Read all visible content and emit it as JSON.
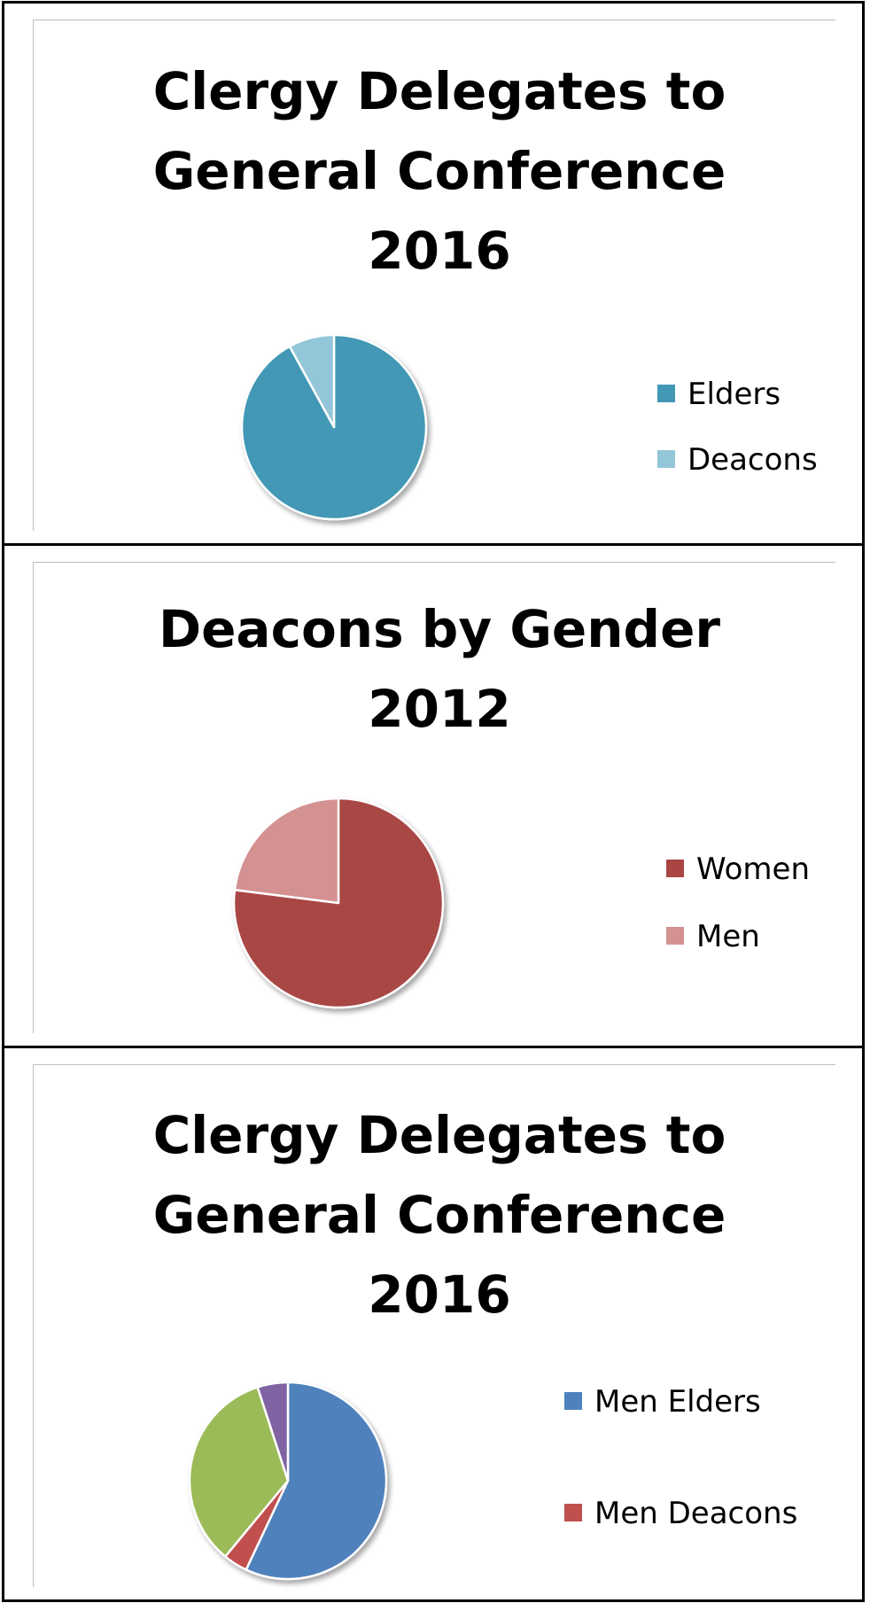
{
  "chart_data": [
    {
      "type": "pie",
      "title": "Clergy Delegates to\nGeneral Conference\n2016",
      "categories": [
        "Elders",
        "Deacons"
      ],
      "values": [
        92,
        8
      ],
      "colors": [
        "#4298b5",
        "#93c6d9"
      ],
      "legend": "right"
    },
    {
      "type": "pie",
      "title": "Deacons by Gender\n2012",
      "categories": [
        "Women",
        "Men"
      ],
      "values": [
        77,
        23
      ],
      "colors": [
        "#a94644",
        "#d49191"
      ],
      "legend": "right"
    },
    {
      "type": "pie",
      "title": "Clergy Delegates to\nGeneral Conference\n2016",
      "categories": [
        "Men Elders",
        "Men Deacons",
        "",
        ""
      ],
      "values": [
        57,
        4,
        34,
        5
      ],
      "colors": [
        "#4f81bd",
        "#c0504d",
        "#9bbb59",
        "#8064a2"
      ],
      "legend": "right"
    }
  ]
}
